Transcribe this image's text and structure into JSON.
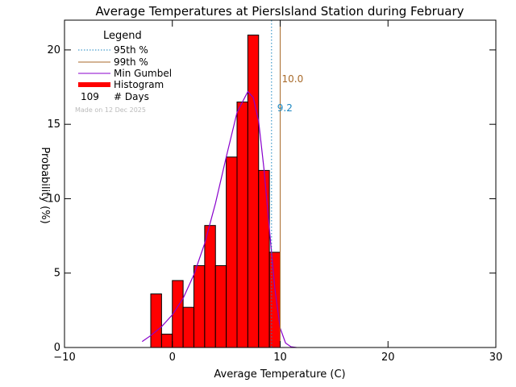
{
  "chart_data": {
    "type": "bar",
    "title": "Average Temperatures at PiersIsland Station during February",
    "xlabel": "Average Temperature (C)",
    "ylabel": "Probability (%)",
    "xlim": [
      -10,
      30
    ],
    "ylim": [
      0,
      22
    ],
    "x_ticks": [
      -10,
      0,
      10,
      20,
      30
    ],
    "y_ticks": [
      0,
      5,
      10,
      15,
      20
    ],
    "histogram": {
      "bin_edges": [
        -2,
        -1,
        0,
        1,
        2,
        3,
        4,
        5,
        6,
        7,
        8,
        9,
        10
      ],
      "values": [
        3.6,
        0.9,
        4.5,
        2.7,
        5.5,
        8.2,
        5.5,
        12.8,
        16.5,
        21.0,
        11.9,
        6.4
      ]
    },
    "gumbel_curve": {
      "x": [
        -2.8,
        -2,
        -1,
        0,
        1,
        2,
        3,
        4,
        5,
        6,
        7,
        7.5,
        8,
        8.5,
        9,
        9.5,
        10,
        10.5,
        11,
        11.5
      ],
      "y": [
        0.4,
        0.8,
        1.4,
        2.2,
        3.3,
        4.9,
        7.0,
        9.7,
        12.8,
        15.8,
        17.2,
        16.8,
        15.2,
        12.0,
        8.0,
        4.0,
        1.3,
        0.3,
        0.05,
        0.0
      ]
    },
    "percentile_95": 9.2,
    "percentile_99": 10.0,
    "colors": {
      "histogram": "#ff0000",
      "gumbel": "#8800cc",
      "p95": "#1a86c0",
      "p99": "#a86a2a"
    },
    "legend": {
      "title": "Legend",
      "p95_label": "95th %",
      "p99_label": "99th %",
      "gumbel_label": "Min Gumbel",
      "histogram_label": "Histogram",
      "days_count": "109",
      "days_label": "# Days"
    },
    "credit": "Made on 12 Dec 2025"
  }
}
